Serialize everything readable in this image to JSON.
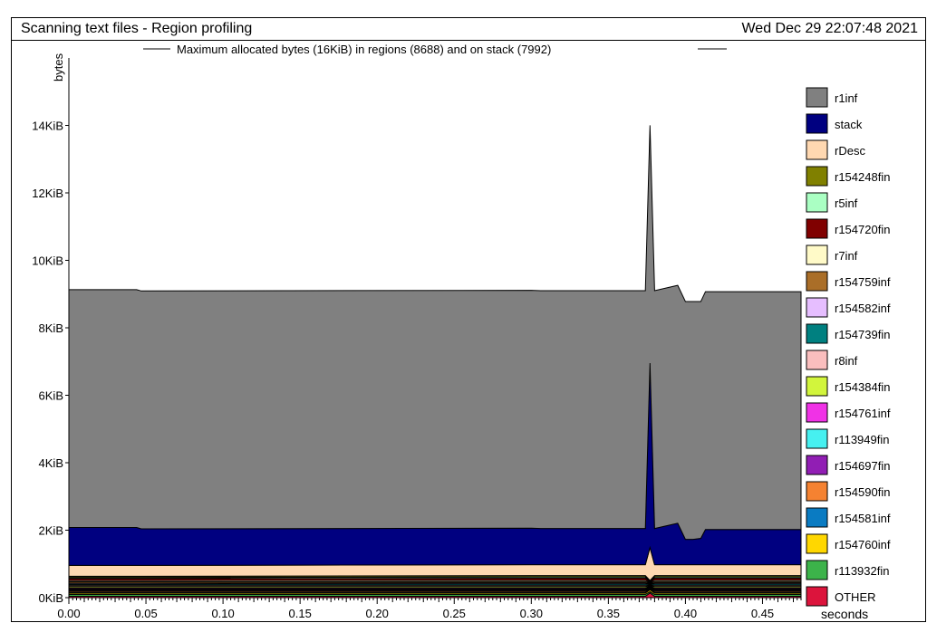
{
  "header": {
    "title": "Scanning text files - Region profiling",
    "timestamp": "Wed Dec 29 22:07:48 2021"
  },
  "chart_data": {
    "type": "area",
    "title": "Maximum allocated bytes (16KiB) in regions (8688) and on stack (7992)",
    "xlabel": "seconds",
    "ylabel": "bytes",
    "xlim": [
      0.0,
      0.475
    ],
    "ylim": [
      0,
      16384
    ],
    "x_ticks": [
      "0.00",
      "0.05",
      "0.10",
      "0.15",
      "0.20",
      "0.25",
      "0.30",
      "0.35",
      "0.40",
      "0.45"
    ],
    "y_ticks": [
      "0KiB",
      "2KiB",
      "4KiB",
      "6KiB",
      "8KiB",
      "10KiB",
      "12KiB",
      "14KiB"
    ],
    "legend_position": "right",
    "x": [
      0.0,
      0.044,
      0.047,
      0.3,
      0.306,
      0.374,
      0.377,
      0.38,
      0.395,
      0.4,
      0.405,
      0.41,
      0.413,
      0.45,
      0.455,
      0.475
    ],
    "series": [
      {
        "name": "OTHER",
        "color": "#dc143c",
        "values": [
          40,
          40,
          40,
          40,
          40,
          40,
          140,
          40,
          40,
          40,
          40,
          40,
          40,
          40,
          40,
          40
        ]
      },
      {
        "name": "r113932fin",
        "color": "#3cb34a",
        "values": [
          60,
          60,
          60,
          60,
          60,
          60,
          40,
          60,
          60,
          60,
          60,
          60,
          60,
          60,
          60,
          60
        ]
      },
      {
        "name": "r154760inf",
        "color": "#ffd700",
        "values": [
          40,
          40,
          40,
          40,
          40,
          40,
          60,
          40,
          40,
          40,
          40,
          40,
          40,
          40,
          40,
          40
        ]
      },
      {
        "name": "r154581inf",
        "color": "#0a7bc2",
        "values": [
          30,
          30,
          30,
          30,
          30,
          30,
          20,
          30,
          30,
          30,
          30,
          30,
          30,
          30,
          30,
          30
        ]
      },
      {
        "name": "r154590fin",
        "color": "#f58231",
        "values": [
          40,
          40,
          40,
          40,
          40,
          40,
          20,
          40,
          40,
          40,
          40,
          40,
          40,
          40,
          40,
          40
        ]
      },
      {
        "name": "r154697fin",
        "color": "#911eb4",
        "values": [
          30,
          30,
          30,
          30,
          30,
          30,
          20,
          30,
          30,
          30,
          30,
          30,
          30,
          30,
          30,
          30
        ]
      },
      {
        "name": "r113949fin",
        "color": "#46f0f0",
        "values": [
          30,
          30,
          30,
          30,
          30,
          30,
          20,
          30,
          30,
          30,
          30,
          30,
          30,
          30,
          30,
          30
        ]
      },
      {
        "name": "r154761inf",
        "color": "#f032e6",
        "values": [
          30,
          30,
          30,
          30,
          30,
          30,
          20,
          30,
          30,
          30,
          30,
          30,
          30,
          30,
          30,
          30
        ]
      },
      {
        "name": "r154384fin",
        "color": "#d2f53c",
        "values": [
          40,
          40,
          40,
          40,
          40,
          40,
          20,
          40,
          40,
          40,
          40,
          40,
          40,
          40,
          40,
          40
        ]
      },
      {
        "name": "r8inf",
        "color": "#fabebe",
        "values": [
          40,
          40,
          40,
          40,
          40,
          40,
          20,
          40,
          40,
          40,
          40,
          40,
          40,
          40,
          40,
          40
        ]
      },
      {
        "name": "r154739fin",
        "color": "#008080",
        "values": [
          30,
          30,
          30,
          40,
          40,
          40,
          20,
          40,
          40,
          40,
          40,
          40,
          40,
          40,
          40,
          40
        ]
      },
      {
        "name": "r154582inf",
        "color": "#e6beff",
        "values": [
          30,
          30,
          30,
          30,
          30,
          30,
          20,
          30,
          30,
          30,
          30,
          30,
          30,
          30,
          30,
          30
        ]
      },
      {
        "name": "r154759inf",
        "color": "#aa6e28",
        "values": [
          40,
          40,
          40,
          40,
          40,
          40,
          20,
          40,
          40,
          40,
          40,
          40,
          40,
          40,
          40,
          40
        ]
      },
      {
        "name": "r7inf",
        "color": "#fffac8",
        "values": [
          40,
          40,
          40,
          40,
          40,
          40,
          20,
          40,
          40,
          40,
          40,
          40,
          40,
          40,
          40,
          40
        ]
      },
      {
        "name": "r154720fin",
        "color": "#800000",
        "values": [
          60,
          60,
          60,
          60,
          60,
          60,
          20,
          60,
          60,
          60,
          60,
          60,
          60,
          60,
          60,
          60
        ]
      },
      {
        "name": "r5inf",
        "color": "#aaffc3",
        "values": [
          30,
          30,
          30,
          40,
          40,
          40,
          20,
          40,
          40,
          40,
          40,
          40,
          40,
          40,
          40,
          40
        ]
      },
      {
        "name": "r154248fin",
        "color": "#808000",
        "values": [
          40,
          40,
          40,
          40,
          40,
          40,
          20,
          40,
          40,
          40,
          40,
          40,
          40,
          40,
          40,
          40
        ]
      },
      {
        "name": "rDesc",
        "color": "#ffd8b1",
        "values": [
          330,
          330,
          330,
          330,
          330,
          330,
          1000,
          330,
          330,
          330,
          330,
          330,
          330,
          330,
          330,
          330
        ]
      },
      {
        "name": "stack",
        "color": "#000080",
        "values": [
          1150,
          1150,
          1110,
          1110,
          1100,
          1100,
          5600,
          1100,
          1260,
          770,
          770,
          800,
          1070,
          1070,
          1070,
          1070
        ]
      },
      {
        "name": "r1inf",
        "color": "#808080",
        "values": [
          7220,
          7220,
          7220,
          7220,
          7220,
          7220,
          7220,
          7220,
          7220,
          7220,
          7220,
          7190,
          7220,
          7220,
          7220,
          7220
        ]
      }
    ]
  }
}
